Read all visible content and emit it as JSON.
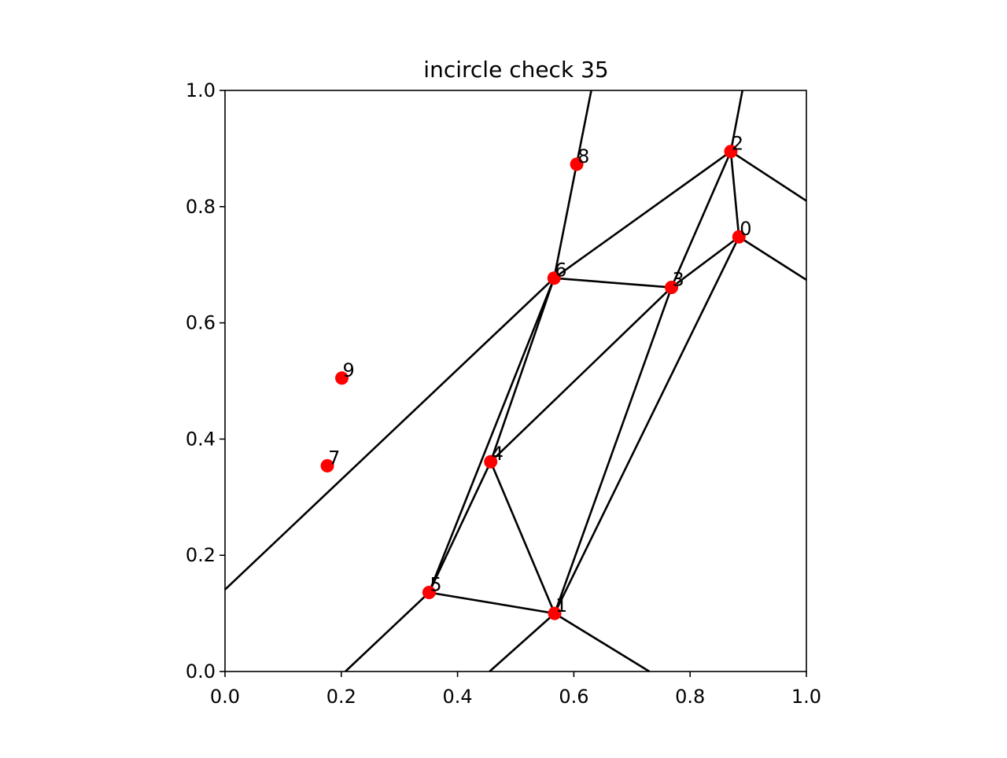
{
  "chart_data": {
    "type": "scatter",
    "title": "incircle check 35",
    "xlabel": "",
    "ylabel": "",
    "xlim": [
      0.0,
      1.0
    ],
    "ylim": [
      0.0,
      1.0
    ],
    "xticks": [
      "0.0",
      "0.2",
      "0.4",
      "0.6",
      "0.8",
      "1.0"
    ],
    "yticks": [
      "0.0",
      "0.2",
      "0.4",
      "0.6",
      "0.8",
      "1.0"
    ],
    "grid": false,
    "point_color": "#ff0000",
    "line_color": "#000000",
    "points": [
      {
        "label": "0",
        "x": 0.884,
        "y": 0.748
      },
      {
        "label": "1",
        "x": 0.567,
        "y": 0.1
      },
      {
        "label": "2",
        "x": 0.87,
        "y": 0.895
      },
      {
        "label": "3",
        "x": 0.768,
        "y": 0.661
      },
      {
        "label": "4",
        "x": 0.457,
        "y": 0.361
      },
      {
        "label": "5",
        "x": 0.351,
        "y": 0.136
      },
      {
        "label": "6",
        "x": 0.566,
        "y": 0.677
      },
      {
        "label": "7",
        "x": 0.176,
        "y": 0.354
      },
      {
        "label": "8",
        "x": 0.605,
        "y": 0.873
      },
      {
        "label": "9",
        "x": 0.201,
        "y": 0.505
      }
    ],
    "edges": [
      [
        [
          0.566,
          0.677
        ],
        [
          0.768,
          0.661
        ]
      ],
      [
        [
          0.566,
          0.677
        ],
        [
          0.87,
          0.895
        ]
      ],
      [
        [
          0.566,
          0.677
        ],
        [
          0.457,
          0.361
        ]
      ],
      [
        [
          0.566,
          0.677
        ],
        [
          0.351,
          0.136
        ]
      ],
      [
        [
          0.566,
          0.677
        ],
        [
          0.63,
          1.0
        ]
      ],
      [
        [
          0.566,
          0.677
        ],
        [
          0.0,
          0.141
        ]
      ],
      [
        [
          0.87,
          0.895
        ],
        [
          0.884,
          0.748
        ]
      ],
      [
        [
          0.87,
          0.895
        ],
        [
          0.768,
          0.661
        ]
      ],
      [
        [
          0.87,
          0.895
        ],
        [
          0.89,
          1.0
        ]
      ],
      [
        [
          0.87,
          0.895
        ],
        [
          1.0,
          0.81
        ]
      ],
      [
        [
          0.884,
          0.748
        ],
        [
          0.768,
          0.661
        ]
      ],
      [
        [
          0.884,
          0.748
        ],
        [
          0.567,
          0.1
        ]
      ],
      [
        [
          0.884,
          0.748
        ],
        [
          1.0,
          0.674
        ]
      ],
      [
        [
          0.768,
          0.661
        ],
        [
          0.457,
          0.361
        ]
      ],
      [
        [
          0.768,
          0.661
        ],
        [
          0.567,
          0.1
        ]
      ],
      [
        [
          0.457,
          0.361
        ],
        [
          0.351,
          0.136
        ]
      ],
      [
        [
          0.457,
          0.361
        ],
        [
          0.567,
          0.1
        ]
      ],
      [
        [
          0.351,
          0.136
        ],
        [
          0.567,
          0.1
        ]
      ],
      [
        [
          0.351,
          0.136
        ],
        [
          0.207,
          0.0
        ]
      ],
      [
        [
          0.567,
          0.1
        ],
        [
          0.455,
          0.0
        ]
      ],
      [
        [
          0.567,
          0.1
        ],
        [
          0.73,
          0.0
        ]
      ]
    ]
  }
}
